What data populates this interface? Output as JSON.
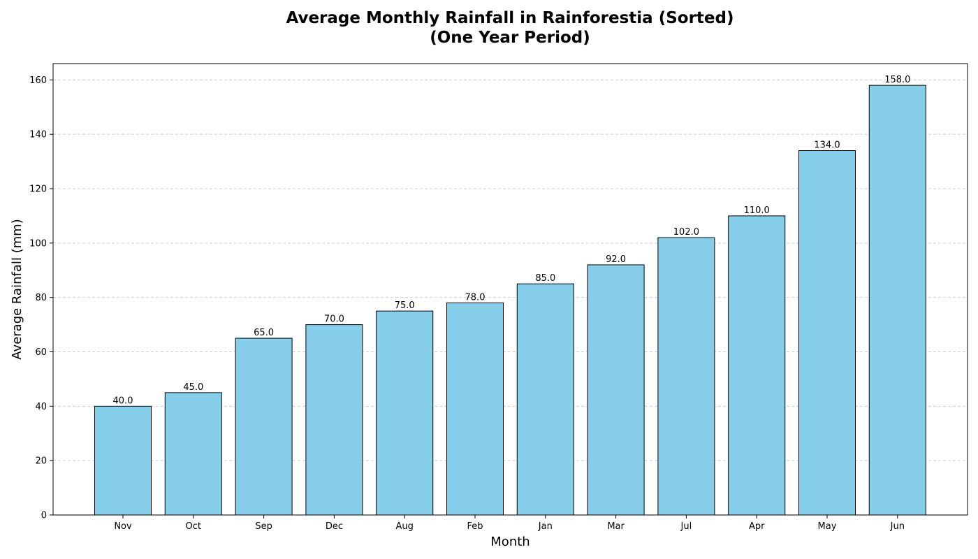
{
  "chart_data": {
    "type": "bar",
    "title_lines": [
      "Average Monthly Rainfall in Rainforestia (Sorted)",
      "(One Year Period)"
    ],
    "xlabel": "Month",
    "ylabel": "Average Rainfall (mm)",
    "categories": [
      "Nov",
      "Oct",
      "Sep",
      "Dec",
      "Aug",
      "Feb",
      "Jan",
      "Mar",
      "Jul",
      "Apr",
      "May",
      "Jun"
    ],
    "values": [
      40.0,
      45.0,
      65.0,
      70.0,
      75.0,
      78.0,
      85.0,
      92.0,
      102.0,
      110.0,
      134.0,
      158.0
    ],
    "data_labels": [
      "40.0",
      "45.0",
      "65.0",
      "70.0",
      "75.0",
      "78.0",
      "85.0",
      "92.0",
      "102.0",
      "110.0",
      "134.0",
      "158.0"
    ],
    "y_ticks": [
      0,
      20,
      40,
      60,
      80,
      100,
      120,
      140,
      160
    ],
    "ylim": [
      0,
      166
    ],
    "grid": "y-axis dashed",
    "legend": "none",
    "colors": {
      "bar_fill": "#87CEEB",
      "bar_edge": "#000000",
      "grid": "#cccccc"
    }
  }
}
